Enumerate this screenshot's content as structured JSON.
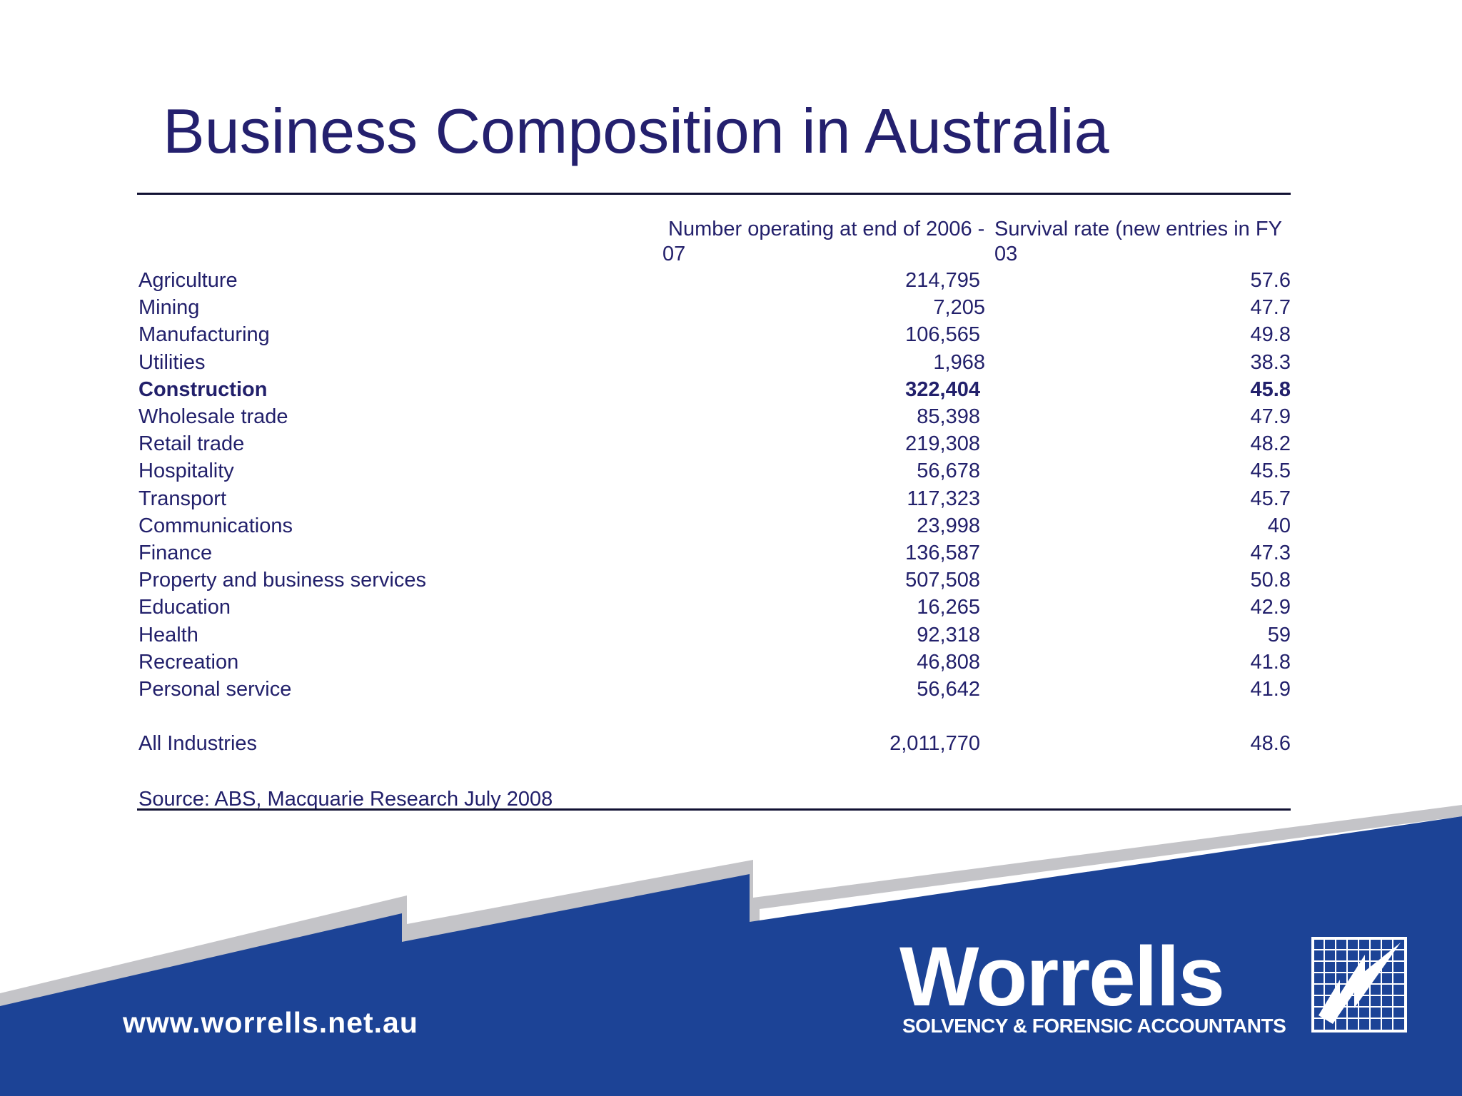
{
  "title": "Business Composition in Australia",
  "headers": {
    "col2_line1": "Number operating at end of 2006 -",
    "col2_line2": "07",
    "col3_line1": "Survival rate (new entries in FY",
    "col3_line2": "03"
  },
  "rows": [
    {
      "industry": "Agriculture",
      "number": "214,795",
      "survival": "57.6"
    },
    {
      "industry": "Mining",
      "number": "7,205",
      "survival": "47.7"
    },
    {
      "industry": "Manufacturing",
      "number": "106,565",
      "survival": "49.8"
    },
    {
      "industry": "Utilities",
      "number": "1,968",
      "survival": "38.3"
    },
    {
      "industry": "Construction",
      "number": "322,404",
      "survival": "45.8"
    },
    {
      "industry": "Wholesale trade",
      "number": "85,398",
      "survival": "47.9"
    },
    {
      "industry": "Retail trade",
      "number": "219,308",
      "survival": "48.2"
    },
    {
      "industry": "Hospitality",
      "number": "56,678",
      "survival": "45.5"
    },
    {
      "industry": "Transport",
      "number": "117,323",
      "survival": "45.7"
    },
    {
      "industry": "Communications",
      "number": "23,998",
      "survival": "40"
    },
    {
      "industry": "Finance",
      "number": "136,587",
      "survival": "47.3"
    },
    {
      "industry": "Property and business services",
      "number": "507,508",
      "survival": "50.8"
    },
    {
      "industry": "Education",
      "number": "16,265",
      "survival": "42.9"
    },
    {
      "industry": "Health",
      "number": "92,318",
      "survival": "59"
    },
    {
      "industry": "Recreation",
      "number": "46,808",
      "survival": "41.8"
    },
    {
      "industry": "Personal service",
      "number": "56,642",
      "survival": "41.9"
    }
  ],
  "total": {
    "industry": "All Industries",
    "number": "2,011,770",
    "survival": "48.6"
  },
  "source": "Source: ABS, Macquarie Research July 2008",
  "footer": {
    "url": "www.worrells.net.au",
    "brand": "Worrells",
    "tagline": "SOLVENCY & FORENSIC ACCOUNTANTS"
  },
  "colors": {
    "title": "#24206e",
    "banner_blue": "#1c4396",
    "banner_grey": "#c4c4c8"
  }
}
